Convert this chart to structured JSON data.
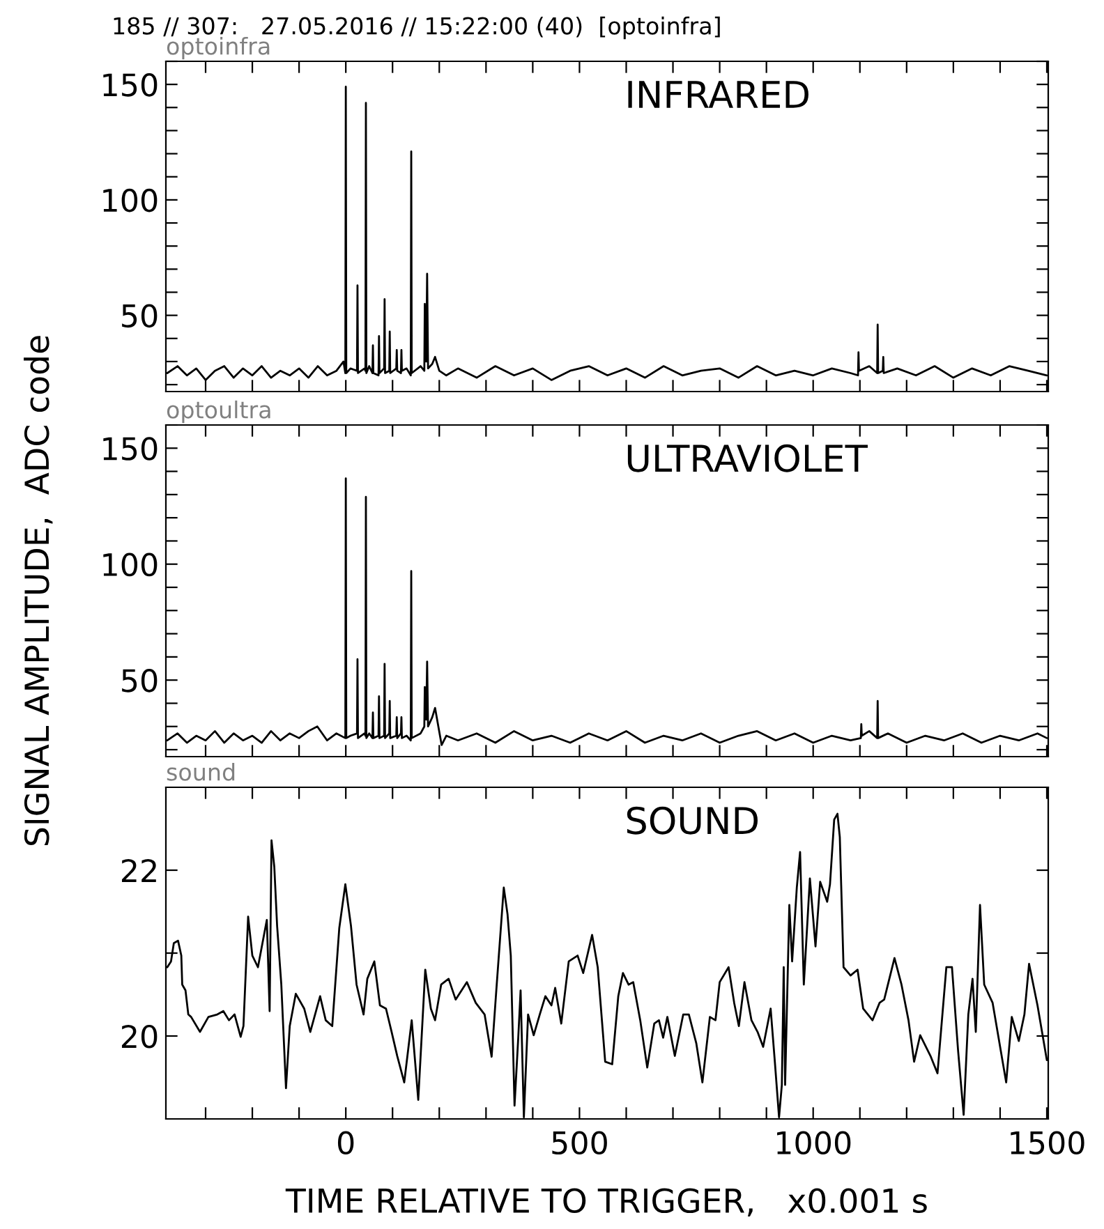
{
  "chart_data": [
    {
      "type": "line",
      "title": "185 // 307:   27.05.2016 // 15:22:00 (40)  [optoinfra]",
      "subtitle": "optoinfra",
      "annotations": [
        "INFRARED"
      ],
      "series": [
        {
          "color": "#000000",
          "x": [
            -382,
            -360,
            -340,
            -320,
            -300,
            -280,
            -260,
            -240,
            -220,
            -200,
            -180,
            -160,
            -140,
            -120,
            -100,
            -80,
            -60,
            -40,
            -20,
            -5,
            -1,
            0,
            1,
            10,
            24,
            25,
            26,
            40,
            42,
            43,
            44,
            50,
            57,
            58,
            59,
            70,
            71,
            72,
            82,
            83,
            84,
            93,
            94,
            95,
            108,
            109,
            110,
            118,
            119,
            120,
            130,
            139,
            140,
            141,
            160,
            168,
            169,
            172,
            174,
            176,
            185,
            191,
            200,
            215,
            240,
            280,
            320,
            360,
            400,
            440,
            480,
            520,
            560,
            600,
            640,
            680,
            720,
            760,
            800,
            840,
            880,
            920,
            960,
            1000,
            1040,
            1080,
            1096,
            1097,
            1098,
            1120,
            1137,
            1138,
            1139,
            1149,
            1150,
            1151,
            1180,
            1220,
            1260,
            1300,
            1340,
            1380,
            1420,
            1460,
            1500
          ],
          "values": [
            25,
            28,
            24,
            27,
            22,
            26,
            28,
            23,
            27,
            24,
            28,
            23,
            26,
            24,
            27,
            23,
            28,
            24,
            26,
            30,
            25,
            149,
            25,
            27,
            26,
            63,
            25,
            27,
            26,
            142,
            25,
            28,
            25,
            37,
            25,
            24,
            41,
            25,
            27,
            57,
            25,
            26,
            43,
            25,
            27,
            35,
            26,
            25,
            35,
            26,
            27,
            24,
            121,
            25,
            28,
            26,
            55,
            30,
            68,
            27,
            29,
            32,
            26,
            24,
            27,
            23,
            28,
            24,
            27,
            22,
            26,
            28,
            24,
            27,
            23,
            28,
            24,
            26,
            27,
            23,
            28,
            24,
            26,
            24,
            27,
            25,
            24,
            34,
            26,
            28,
            25,
            46,
            25,
            26,
            32,
            25,
            27,
            24,
            28,
            23,
            27,
            24,
            28,
            26,
            24
          ]
        }
      ],
      "xlim": [
        -385,
        1503
      ],
      "ylim": [
        17,
        160
      ],
      "xticks": [
        {
          "value": -300,
          "label": null
        },
        {
          "value": -200,
          "label": null
        },
        {
          "value": -100,
          "label": null
        },
        0,
        {
          "value": 100,
          "label": null
        },
        {
          "value": 200,
          "label": null
        },
        {
          "value": 300,
          "label": null
        },
        {
          "value": 400,
          "label": null
        },
        500,
        {
          "value": 600,
          "label": null
        },
        {
          "value": 700,
          "label": null
        },
        {
          "value": 800,
          "label": null
        },
        {
          "value": 900,
          "label": null
        },
        1000,
        {
          "value": 1100,
          "label": null
        },
        {
          "value": 1200,
          "label": null
        },
        {
          "value": 1300,
          "label": null
        },
        {
          "value": 1400,
          "label": null
        },
        1500
      ],
      "yticks": [
        {
          "value": 20,
          "label": null
        },
        {
          "value": 30,
          "label": null
        },
        {
          "value": 40,
          "label": null
        },
        50,
        {
          "value": 60,
          "label": null
        },
        {
          "value": 70,
          "label": null
        },
        {
          "value": 80,
          "label": null
        },
        {
          "value": 90,
          "label": null
        },
        100,
        {
          "value": 110,
          "label": null
        },
        {
          "value": 120,
          "label": null
        },
        {
          "value": 130,
          "label": null
        },
        {
          "value": 140,
          "label": null
        },
        150,
        {
          "value": 160,
          "label": null
        }
      ],
      "tick_labels": "y",
      "grid": false,
      "legend": false,
      "line_style": "solid",
      "marker": "none"
    },
    {
      "type": "line",
      "subtitle": "optoultra",
      "ylabel": "SIGNAL AMPLITUDE,  ADC code",
      "annotations": [
        "ULTRAVIOLET"
      ],
      "series": [
        {
          "color": "#000000",
          "x": [
            -382,
            -360,
            -340,
            -320,
            -300,
            -280,
            -260,
            -240,
            -220,
            -200,
            -180,
            -160,
            -140,
            -120,
            -100,
            -80,
            -61,
            -40,
            -20,
            -1,
            0,
            1,
            10,
            24,
            25,
            26,
            40,
            42,
            43,
            44,
            50,
            57,
            58,
            59,
            70,
            71,
            72,
            82,
            83,
            84,
            93,
            94,
            95,
            108,
            109,
            110,
            118,
            119,
            120,
            130,
            139,
            140,
            141,
            160,
            168,
            169,
            172,
            174,
            176,
            185,
            191,
            198,
            205,
            215,
            240,
            280,
            320,
            360,
            400,
            440,
            480,
            520,
            560,
            600,
            640,
            680,
            720,
            760,
            800,
            840,
            880,
            920,
            960,
            1000,
            1040,
            1080,
            1102,
            1103,
            1104,
            1120,
            1137,
            1138,
            1139,
            1160,
            1200,
            1240,
            1280,
            1320,
            1360,
            1400,
            1440,
            1480,
            1500
          ],
          "values": [
            24,
            27,
            23,
            26,
            24,
            28,
            23,
            27,
            24,
            26,
            23,
            28,
            24,
            27,
            25,
            28,
            30,
            24,
            27,
            25,
            137,
            25,
            26,
            27,
            59,
            25,
            27,
            26,
            129,
            25,
            27,
            25,
            36,
            25,
            26,
            43,
            25,
            26,
            57,
            25,
            27,
            41,
            25,
            26,
            34,
            25,
            27,
            34,
            25,
            26,
            24,
            97,
            25,
            27,
            30,
            47,
            33,
            58,
            30,
            34,
            38,
            30,
            22,
            26,
            24,
            27,
            23,
            28,
            24,
            26,
            23,
            27,
            24,
            28,
            23,
            26,
            24,
            27,
            23,
            26,
            28,
            24,
            27,
            23,
            26,
            24,
            25,
            31,
            26,
            28,
            25,
            41,
            25,
            27,
            23,
            26,
            24,
            27,
            23,
            26,
            24,
            27,
            25
          ]
        }
      ],
      "xlim": [
        -385,
        1503
      ],
      "ylim": [
        17,
        160
      ],
      "xticks": [
        {
          "value": -300,
          "label": null
        },
        {
          "value": -200,
          "label": null
        },
        {
          "value": -100,
          "label": null
        },
        0,
        {
          "value": 100,
          "label": null
        },
        {
          "value": 200,
          "label": null
        },
        {
          "value": 300,
          "label": null
        },
        {
          "value": 400,
          "label": null
        },
        500,
        {
          "value": 600,
          "label": null
        },
        {
          "value": 700,
          "label": null
        },
        {
          "value": 800,
          "label": null
        },
        {
          "value": 900,
          "label": null
        },
        1000,
        {
          "value": 1100,
          "label": null
        },
        {
          "value": 1200,
          "label": null
        },
        {
          "value": 1300,
          "label": null
        },
        {
          "value": 1400,
          "label": null
        },
        1500
      ],
      "yticks": [
        {
          "value": 20,
          "label": null
        },
        {
          "value": 30,
          "label": null
        },
        {
          "value": 40,
          "label": null
        },
        50,
        {
          "value": 60,
          "label": null
        },
        {
          "value": 70,
          "label": null
        },
        {
          "value": 80,
          "label": null
        },
        {
          "value": 90,
          "label": null
        },
        100,
        {
          "value": 110,
          "label": null
        },
        {
          "value": 120,
          "label": null
        },
        {
          "value": 130,
          "label": null
        },
        {
          "value": 140,
          "label": null
        },
        150,
        {
          "value": 160,
          "label": null
        }
      ],
      "tick_labels": "y",
      "grid": false,
      "legend": false,
      "line_style": "solid",
      "marker": "none"
    },
    {
      "type": "line",
      "subtitle": "sound",
      "xlabel": "TIME RELATIVE TO TRIGGER,   x0.001 s",
      "annotations": [
        "SOUND"
      ],
      "series": [
        {
          "color": "#000000",
          "x": [
            -382,
            -374,
            -368,
            -359,
            -352,
            -350,
            -343,
            -337,
            -331,
            -312,
            -294,
            -275,
            -262,
            -250,
            -238,
            -225,
            -219,
            -209,
            -200,
            -188,
            -175,
            -169,
            -163,
            -159,
            -153,
            -147,
            -138,
            -128,
            -120,
            -107,
            -89,
            -76,
            -55,
            -43,
            -29,
            -14,
            -1,
            11,
            23,
            38,
            46,
            61,
            73,
            86,
            98,
            110,
            125,
            141,
            155,
            170,
            182,
            191,
            204,
            220,
            235,
            259,
            278,
            297,
            312,
            322,
            338,
            346,
            353,
            361,
            369,
            374,
            381,
            390,
            402,
            415,
            427,
            440,
            448,
            461,
            477,
            496,
            508,
            527,
            539,
            555,
            570,
            583,
            593,
            605,
            615,
            630,
            645,
            660,
            670,
            679,
            688,
            704,
            722,
            734,
            750,
            763,
            779,
            791,
            800,
            819,
            831,
            841,
            853,
            868,
            881,
            893,
            909,
            918,
            927,
            933,
            937,
            940,
            949,
            955,
            965,
            972,
            980,
            993,
            1005,
            1015,
            1030,
            1036,
            1045,
            1052,
            1057,
            1065,
            1080,
            1095,
            1107,
            1127,
            1142,
            1152,
            1174,
            1189,
            1204,
            1216,
            1229,
            1251,
            1266,
            1285,
            1297,
            1310,
            1322,
            1332,
            1341,
            1348,
            1357,
            1366,
            1384,
            1413,
            1425,
            1440,
            1452,
            1462,
            1480,
            1500
          ],
          "values": [
            20.83,
            20.9,
            21.12,
            21.15,
            20.97,
            20.62,
            20.55,
            20.26,
            20.23,
            20.05,
            20.23,
            20.26,
            20.3,
            20.19,
            20.26,
            19.99,
            20.12,
            21.44,
            20.97,
            20.83,
            21.22,
            21.4,
            20.3,
            22.36,
            22.04,
            21.33,
            20.62,
            19.37,
            20.12,
            20.51,
            20.33,
            20.05,
            20.48,
            20.19,
            20.12,
            21.3,
            21.83,
            21.33,
            20.62,
            20.26,
            20.69,
            20.9,
            20.37,
            20.33,
            20.05,
            19.76,
            19.44,
            20.19,
            19.23,
            20.8,
            20.33,
            20.19,
            20.62,
            20.69,
            20.44,
            20.65,
            20.4,
            20.26,
            19.75,
            20.55,
            21.79,
            21.47,
            20.97,
            19.16,
            19.98,
            20.55,
            19.02,
            20.26,
            20.01,
            20.26,
            20.48,
            20.37,
            20.58,
            20.15,
            20.9,
            20.97,
            20.76,
            21.22,
            20.83,
            19.69,
            19.66,
            20.48,
            20.76,
            20.62,
            20.65,
            20.19,
            19.62,
            20.15,
            20.19,
            19.98,
            20.23,
            19.76,
            20.26,
            20.26,
            19.91,
            19.44,
            20.23,
            20.19,
            20.65,
            20.83,
            20.4,
            20.12,
            20.65,
            20.19,
            20.05,
            19.87,
            20.33,
            19.69,
            19.02,
            19.41,
            20.83,
            19.41,
            21.58,
            20.9,
            21.79,
            22.22,
            20.62,
            21.9,
            21.08,
            21.86,
            21.62,
            21.83,
            22.61,
            22.68,
            22.4,
            20.83,
            20.73,
            20.8,
            20.33,
            20.19,
            20.4,
            20.44,
            20.94,
            20.62,
            20.19,
            19.69,
            20.01,
            19.76,
            19.55,
            20.83,
            20.83,
            19.83,
            19.05,
            20.26,
            20.69,
            20.05,
            21.58,
            20.62,
            20.4,
            19.44,
            20.23,
            19.94,
            20.26,
            20.87,
            20.37,
            19.71
          ]
        }
      ],
      "xlim": [
        -385,
        1503
      ],
      "ylim": [
        19,
        23
      ],
      "xticks": [
        {
          "value": -300,
          "label": null
        },
        {
          "value": -200,
          "label": null
        },
        {
          "value": -100,
          "label": null
        },
        0,
        {
          "value": 100,
          "label": null
        },
        {
          "value": 200,
          "label": null
        },
        {
          "value": 300,
          "label": null
        },
        {
          "value": 400,
          "label": null
        },
        500,
        {
          "value": 600,
          "label": null
        },
        {
          "value": 700,
          "label": null
        },
        {
          "value": 800,
          "label": null
        },
        {
          "value": 900,
          "label": null
        },
        1000,
        {
          "value": 1100,
          "label": null
        },
        {
          "value": 1200,
          "label": null
        },
        {
          "value": 1300,
          "label": null
        },
        {
          "value": 1400,
          "label": null
        },
        1500
      ],
      "yticks": [
        20,
        {
          "value": 21,
          "label": null
        },
        22
      ],
      "grid": false,
      "legend": false,
      "line_style": "solid",
      "marker": "none"
    }
  ]
}
